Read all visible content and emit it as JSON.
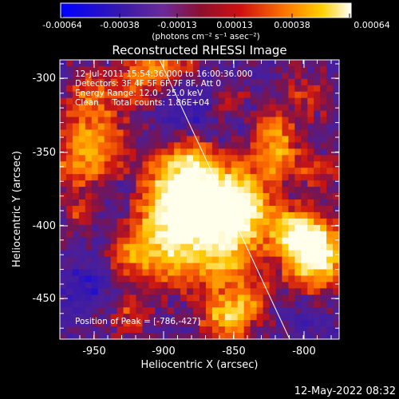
{
  "colorbar": {
    "ticks": [
      "-0.00064",
      "-0.00038",
      "-0.00013",
      "0.00013",
      "0.00038",
      "0.00064"
    ],
    "unit_label": "(photons cm⁻² s⁻¹ asec⁻²)"
  },
  "title": "Reconstructed RHESSI Image",
  "info": {
    "time": "12-Jul-2011 15:54:36.000 to 16:00:36.000",
    "detectors": "Detectors: 3F 4F 5F 6F 7F 8F, Att 0",
    "energy": "Energy Range: 12.0 - 25.0 keV",
    "clean": "Clean     Total counts: 1.86E+04",
    "peak": "Position of Peak = [-786,-427]"
  },
  "axes": {
    "xlabel": "Heliocentric X (arcsec)",
    "ylabel": "Heliocentric Y (arcsec)",
    "xticks": [
      "-950",
      "-900",
      "-850",
      "-800"
    ],
    "yticks": [
      "-300",
      "-350",
      "-400",
      "-450"
    ]
  },
  "footer_timestamp": "12-May-2022 08:32",
  "colors": {
    "background": "#000000",
    "frame": "#ffffff"
  }
}
